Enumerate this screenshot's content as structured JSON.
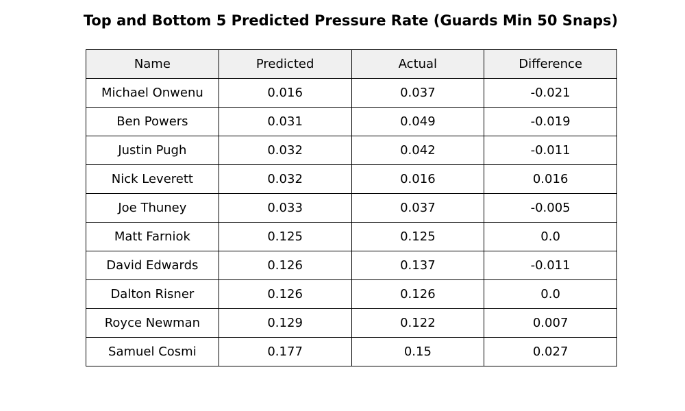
{
  "chart_data": {
    "type": "table",
    "title": "Top and Bottom 5 Predicted Pressure Rate (Guards Min 50 Snaps)",
    "columns": [
      "Name",
      "Predicted",
      "Actual",
      "Difference"
    ],
    "rows": [
      [
        "Michael Onwenu",
        "0.016",
        "0.037",
        "-0.021"
      ],
      [
        "Ben Powers",
        "0.031",
        "0.049",
        "-0.019"
      ],
      [
        "Justin Pugh",
        "0.032",
        "0.042",
        "-0.011"
      ],
      [
        "Nick Leverett",
        "0.032",
        "0.016",
        "0.016"
      ],
      [
        "Joe Thuney",
        "0.033",
        "0.037",
        "-0.005"
      ],
      [
        "Matt Farniok",
        "0.125",
        "0.125",
        "0.0"
      ],
      [
        "David Edwards",
        "0.126",
        "0.137",
        "-0.011"
      ],
      [
        "Dalton Risner",
        "0.126",
        "0.126",
        "0.0"
      ],
      [
        "Royce Newman",
        "0.129",
        "0.122",
        "0.007"
      ],
      [
        "Samuel Cosmi",
        "0.177",
        "0.15",
        "0.027"
      ]
    ],
    "header_background": "#f0f0f0",
    "cell_background": "#ffffff",
    "border_color": "#000000"
  }
}
